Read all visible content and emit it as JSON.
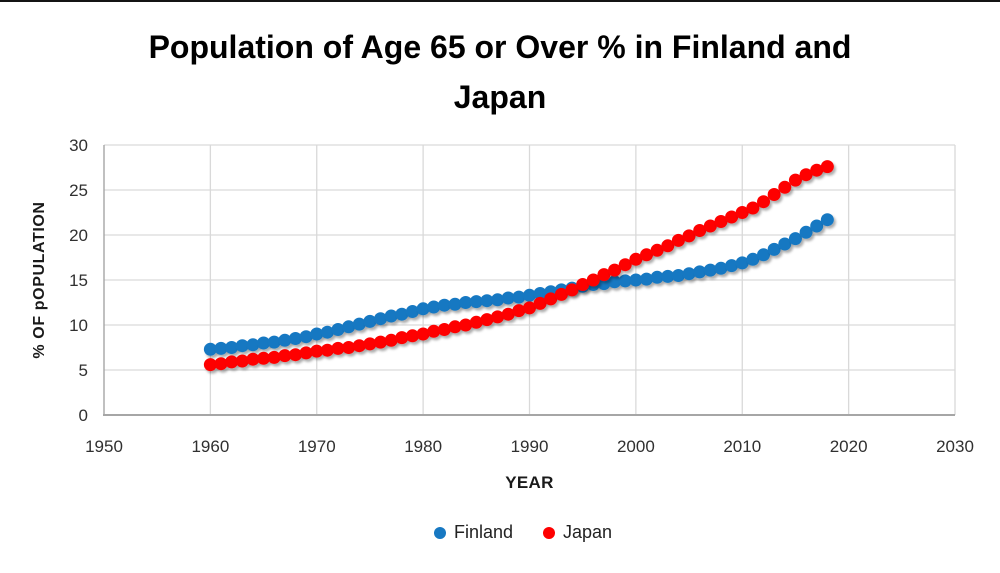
{
  "title_lines": [
    "Population of Age 65 or Over % in Finland and",
    "Japan"
  ],
  "chart_data": {
    "type": "scatter",
    "title": "Population of Age 65 or Over % in Finland and Japan",
    "xlabel": "YEAR",
    "ylabel": "% OF pOPULATION",
    "xlim": [
      1950,
      2030
    ],
    "ylim": [
      0,
      30
    ],
    "x_ticks": [
      1950,
      1960,
      1970,
      1980,
      1990,
      2000,
      2010,
      2020,
      2030
    ],
    "y_ticks": [
      0,
      5,
      10,
      15,
      20,
      25,
      30
    ],
    "grid": true,
    "legend_position": "bottom",
    "marker_radius": 6.5,
    "gridline_color": "#D9D9D9",
    "axis_line_color": "#A6A6A6",
    "tick_color": "#303030",
    "x": [
      1960,
      1961,
      1962,
      1963,
      1964,
      1965,
      1966,
      1967,
      1968,
      1969,
      1970,
      1971,
      1972,
      1973,
      1974,
      1975,
      1976,
      1977,
      1978,
      1979,
      1980,
      1981,
      1982,
      1983,
      1984,
      1985,
      1986,
      1987,
      1988,
      1989,
      1990,
      1991,
      1992,
      1993,
      1994,
      1995,
      1996,
      1997,
      1998,
      1999,
      2000,
      2001,
      2002,
      2003,
      2004,
      2005,
      2006,
      2007,
      2008,
      2009,
      2010,
      2011,
      2012,
      2013,
      2014,
      2015,
      2016,
      2017,
      2018
    ],
    "series": [
      {
        "name": "Finland",
        "color": "#1778C2",
        "values": [
          7.3,
          7.4,
          7.5,
          7.7,
          7.8,
          8.0,
          8.1,
          8.3,
          8.5,
          8.7,
          9.0,
          9.2,
          9.5,
          9.8,
          10.1,
          10.4,
          10.7,
          11.0,
          11.2,
          11.5,
          11.8,
          12.0,
          12.2,
          12.3,
          12.5,
          12.6,
          12.7,
          12.8,
          13.0,
          13.1,
          13.3,
          13.5,
          13.7,
          13.9,
          14.1,
          14.3,
          14.5,
          14.6,
          14.8,
          14.9,
          15.0,
          15.1,
          15.3,
          15.4,
          15.5,
          15.7,
          15.9,
          16.1,
          16.3,
          16.6,
          16.9,
          17.3,
          17.8,
          18.4,
          19.0,
          19.6,
          20.3,
          21.0,
          21.7
        ]
      },
      {
        "name": "Japan",
        "color": "#FE0000",
        "values": [
          5.6,
          5.7,
          5.9,
          6.0,
          6.2,
          6.3,
          6.4,
          6.6,
          6.7,
          6.9,
          7.1,
          7.2,
          7.4,
          7.5,
          7.7,
          7.9,
          8.1,
          8.3,
          8.6,
          8.8,
          9.0,
          9.3,
          9.5,
          9.8,
          10.0,
          10.3,
          10.6,
          10.9,
          11.2,
          11.6,
          11.9,
          12.4,
          12.9,
          13.4,
          13.9,
          14.5,
          15.0,
          15.6,
          16.1,
          16.7,
          17.3,
          17.8,
          18.3,
          18.8,
          19.4,
          19.9,
          20.5,
          21.0,
          21.5,
          22.0,
          22.5,
          23.0,
          23.7,
          24.5,
          25.3,
          26.1,
          26.7,
          27.2,
          27.6
        ]
      }
    ]
  }
}
